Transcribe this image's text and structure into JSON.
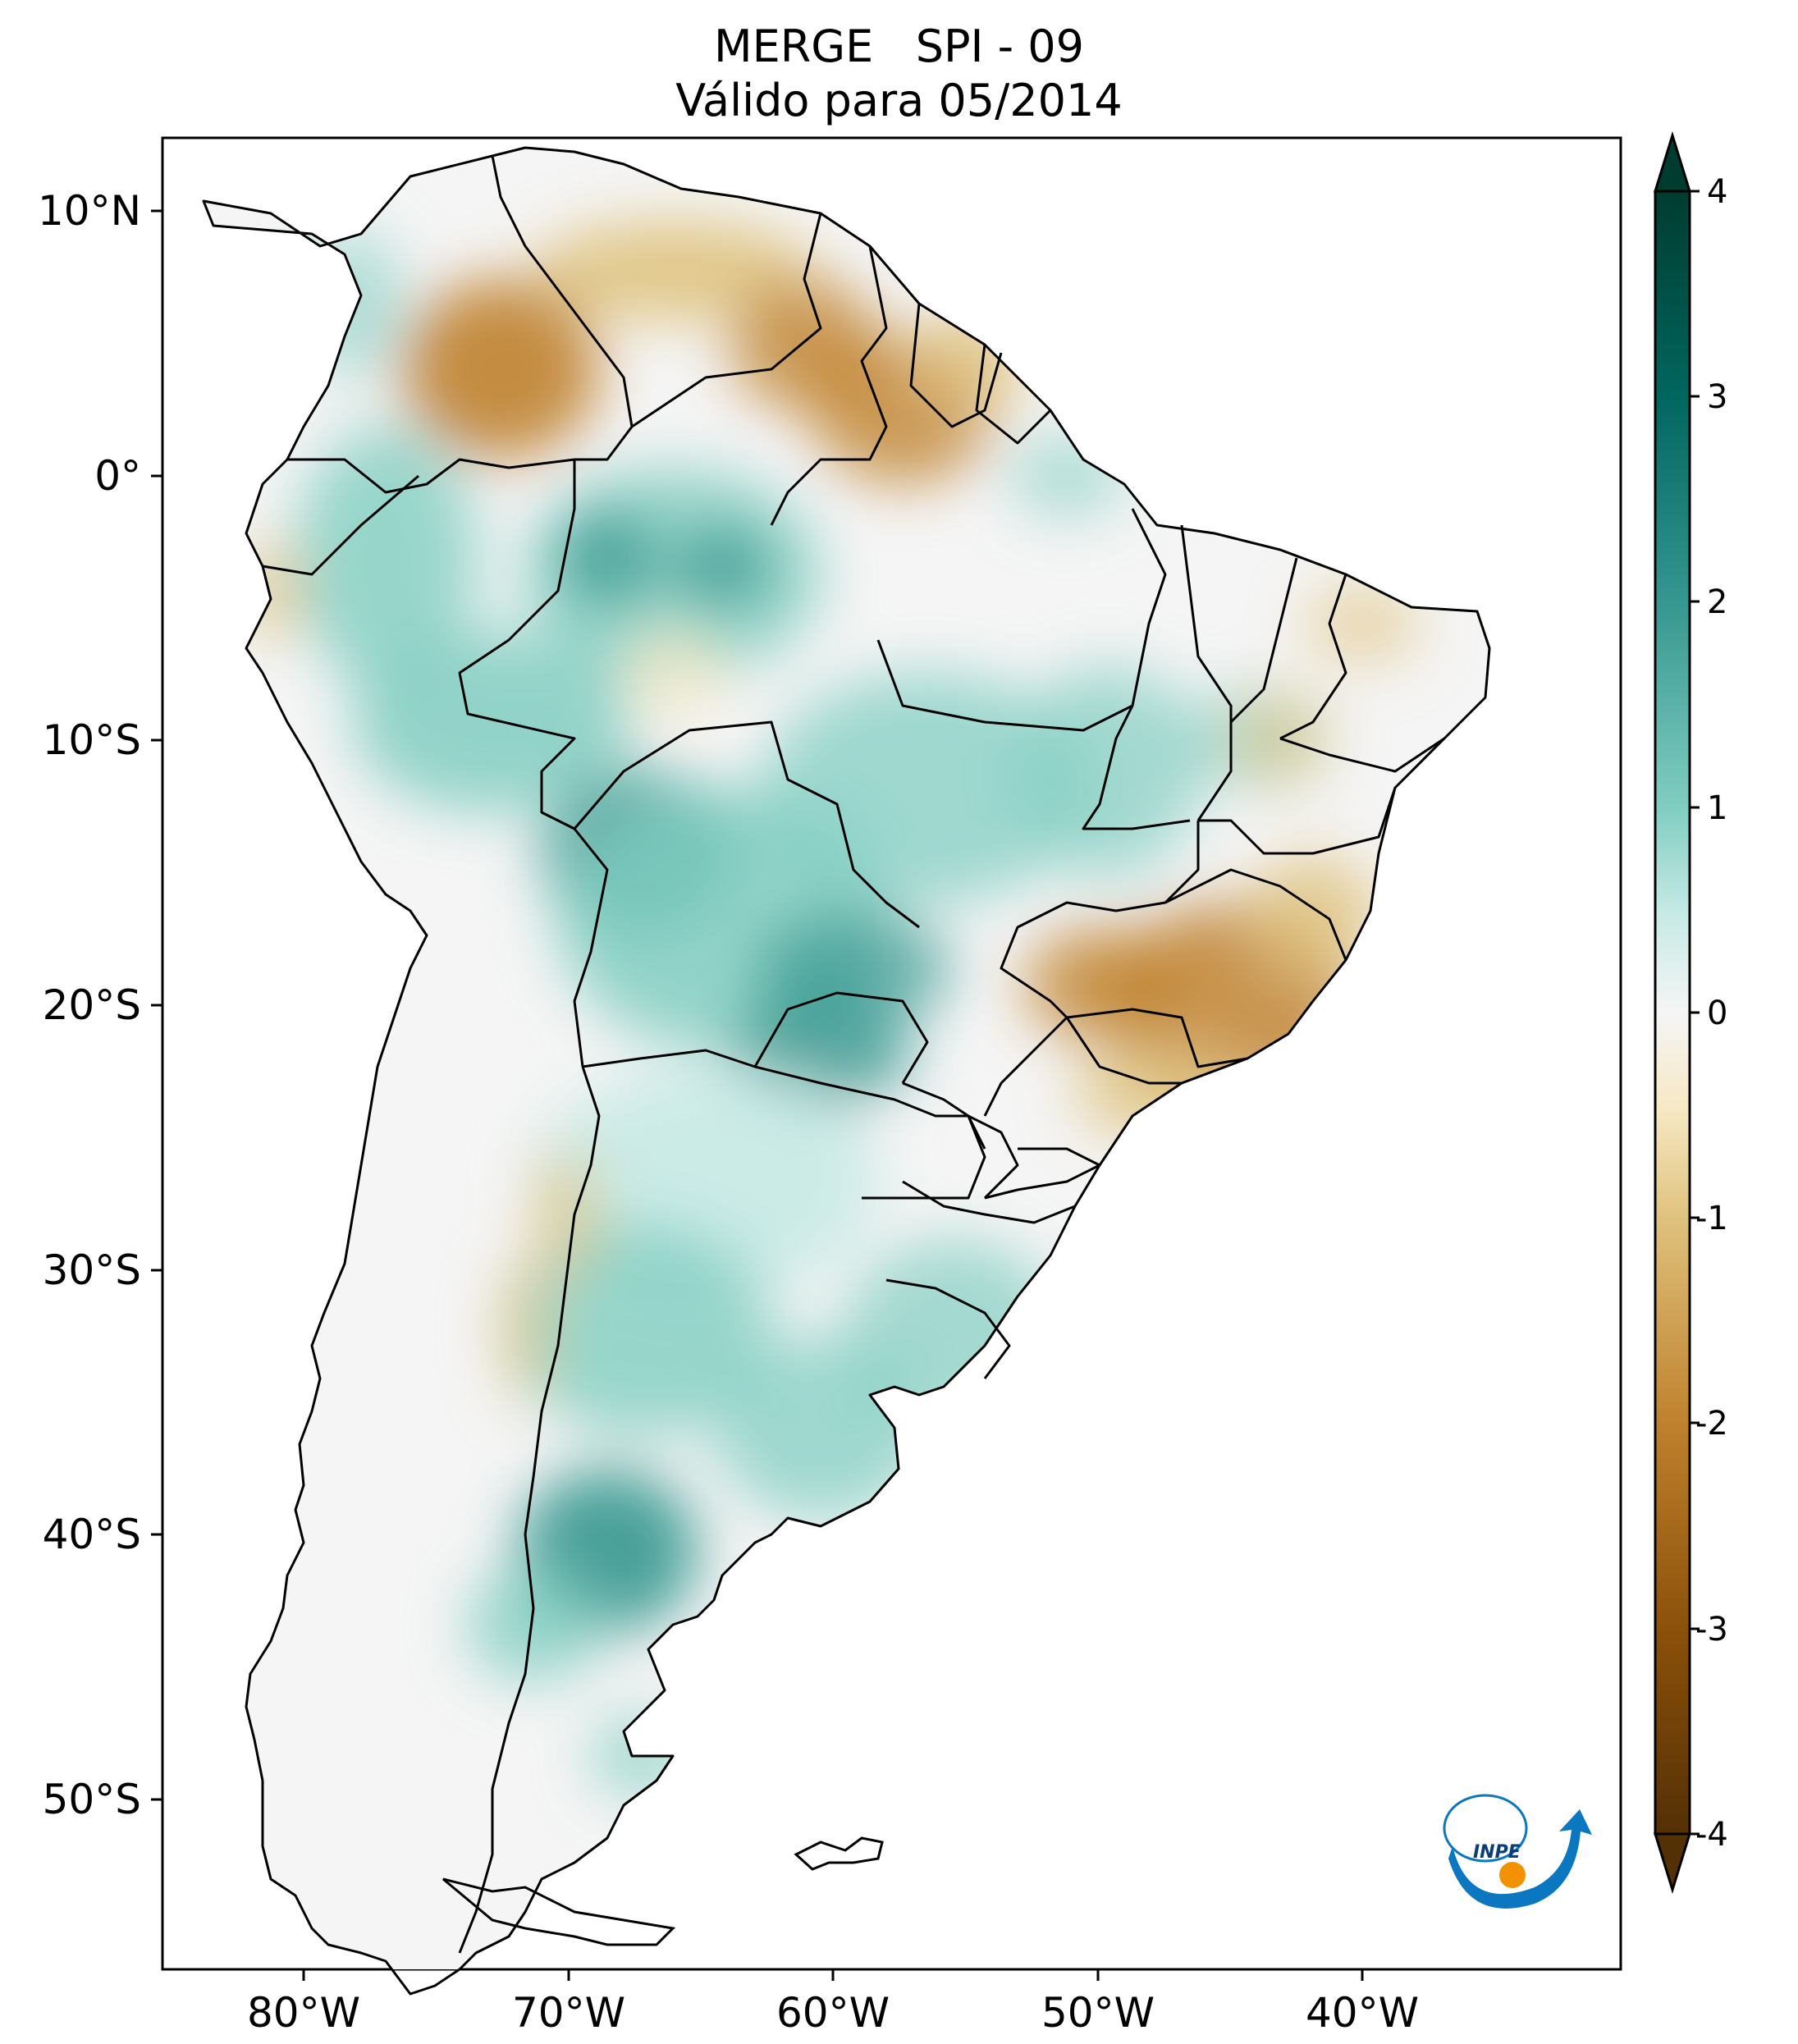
{
  "title": {
    "line1": "MERGE   SPI - 09",
    "line2": "Válido para 05/2014"
  },
  "axes": {
    "lon_ticks": [
      "80°W",
      "70°W",
      "60°W",
      "50°W",
      "40°W"
    ],
    "lat_ticks": [
      "10°N",
      "0°",
      "10°S",
      "20°S",
      "30°S",
      "40°S",
      "50°S"
    ]
  },
  "colorbar": {
    "ticks": [
      "4",
      "3",
      "2",
      "1",
      "0",
      "-1",
      "-2",
      "-3",
      "-4"
    ],
    "range": [
      -4,
      4
    ],
    "extend": "both",
    "colors": {
      "min": "#543005",
      "dry_strong": "#8c510a",
      "dry_mid": "#bf812d",
      "dry_light": "#dfc27d",
      "dry_faint": "#f6e8c3",
      "neutral": "#f5f5f5",
      "wet_faint": "#c7eae5",
      "wet_light": "#80cdc1",
      "wet_mid": "#35978f",
      "wet_strong": "#01665e",
      "max": "#003c30"
    }
  },
  "logo": {
    "text": "INPE",
    "icon": "inpe-logo"
  }
}
